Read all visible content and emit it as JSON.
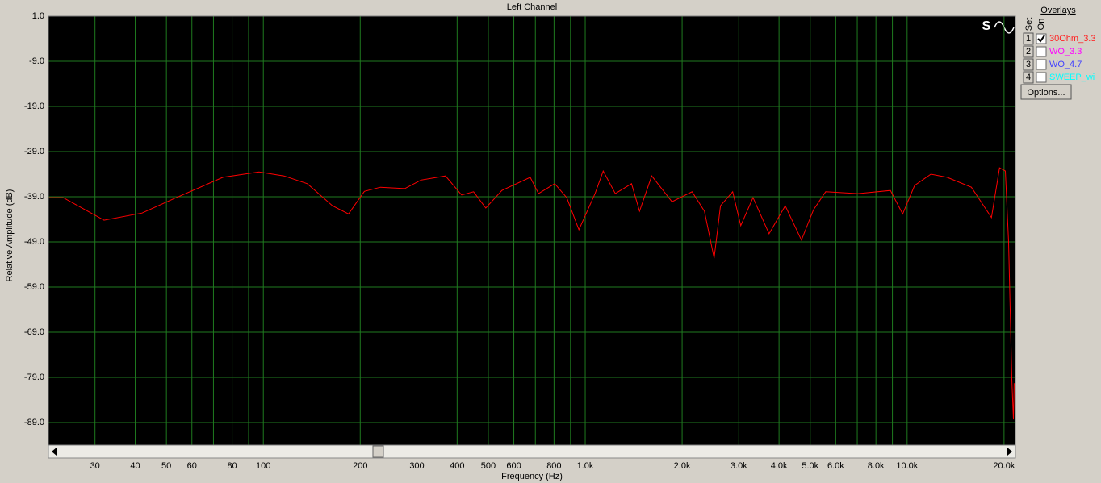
{
  "chart_data": {
    "type": "line",
    "title": "Left Channel",
    "x_label": "Frequency (Hz)",
    "y_label": "Relative Amplitude (dB)",
    "xscale": "log",
    "grid": true,
    "xlim": [
      21.5,
      21700
    ],
    "ylim": [
      -94,
      1
    ],
    "xticks": [
      30,
      40,
      50,
      60,
      80,
      100,
      200,
      300,
      400,
      500,
      600,
      800,
      {
        "value": 1000,
        "label": "1.0k"
      },
      {
        "value": 2000,
        "label": "2.0k"
      },
      {
        "value": 3000,
        "label": "3.0k"
      },
      {
        "value": 4000,
        "label": "4.0k"
      },
      {
        "value": 5000,
        "label": "5.0k"
      },
      {
        "value": 6000,
        "label": "6.0k"
      },
      {
        "value": 8000,
        "label": "8.0k"
      },
      {
        "value": 10000,
        "label": "10.0k"
      },
      {
        "value": 20000,
        "label": "20.0k"
      }
    ],
    "xminor": [
      70,
      90,
      700,
      900,
      7000,
      9000
    ],
    "yticks": [
      {
        "value": 1,
        "label": "1.0"
      },
      {
        "value": -9,
        "label": "-9.0"
      },
      {
        "value": -19,
        "label": "-19.0"
      },
      {
        "value": -29,
        "label": "-29.0"
      },
      {
        "value": -39,
        "label": "-39.0"
      },
      {
        "value": -49,
        "label": "-49.0"
      },
      {
        "value": -59,
        "label": "-59.0"
      },
      {
        "value": -69,
        "label": "-69.0"
      },
      {
        "value": -79,
        "label": "-79.0"
      },
      {
        "value": -89,
        "label": "-89.0"
      }
    ],
    "x": [
      21.6,
      23.9,
      32,
      42,
      52.9,
      74.9,
      97,
      116,
      137,
      164,
      184,
      206,
      231,
      275,
      309,
      368,
      413,
      450,
      491,
      551,
      675,
      716,
      804,
      876,
      956,
      1073,
      1137,
      1240,
      1393,
      1475,
      1609,
      1860,
      2148,
      2346,
      2514,
      2632,
      2872,
      3042,
      3320,
      3726,
      4181,
      4697,
      5119,
      5585,
      7035,
      8873,
      9684,
      10549,
      11856,
      13307,
      15828,
      18285,
      19371,
      20190,
      20661,
      21141,
      21390,
      21500
    ],
    "series": [
      {
        "color": "#ff0000",
        "values": [
          -39.2,
          -39.2,
          -44.2,
          -42.6,
          -39.4,
          -34.7,
          -33.5,
          -34.4,
          -36.1,
          -41.0,
          -42.8,
          -37.8,
          -36.9,
          -37.2,
          -35.3,
          -34.4,
          -38.6,
          -37.9,
          -41.5,
          -37.6,
          -34.7,
          -38.3,
          -36.1,
          -39.2,
          -46.3,
          -38.3,
          -33.3,
          -38.3,
          -36.1,
          -42.2,
          -34.4,
          -40.1,
          -37.9,
          -42.2,
          -52.6,
          -41.0,
          -37.9,
          -45.4,
          -39.2,
          -47.2,
          -41.0,
          -48.6,
          -41.9,
          -37.9,
          -38.3,
          -37.6,
          -42.8,
          -36.5,
          -34.0,
          -34.7,
          -36.9,
          -43.6,
          -32.6,
          -33.3,
          -49.0,
          -79.4,
          -88.3,
          -80.3
        ]
      }
    ]
  },
  "overlays": {
    "title": "Overlays",
    "set_label": "Set",
    "on_label": "On",
    "options_button": "Options...",
    "rows": [
      {
        "number": "1",
        "checked": true,
        "name": "30Ohm_3.3",
        "color": "#ff2020"
      },
      {
        "number": "2",
        "checked": false,
        "name": "WO_3.3",
        "color": "#ff00ff"
      },
      {
        "number": "3",
        "checked": false,
        "name": "WO_4.7",
        "color": "#4040ff"
      },
      {
        "number": "4",
        "checked": false,
        "name": "SWEEP_wi",
        "color": "#00ffff"
      }
    ]
  }
}
